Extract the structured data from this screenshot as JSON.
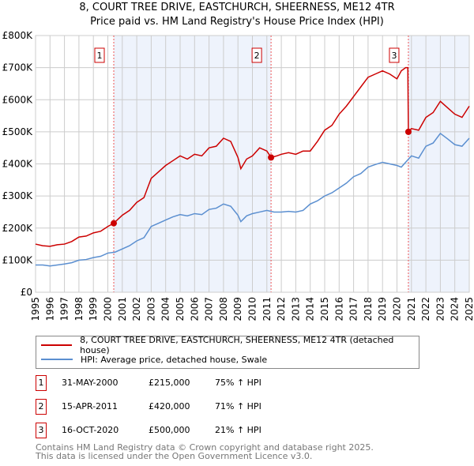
{
  "chart_data": {
    "type": "line",
    "title": "8, COURT TREE DRIVE, EASTCHURCH, SHEERNESS, ME12 4TR",
    "subtitle": "Price paid vs. HM Land Registry's House Price Index (HPI)",
    "xlim": [
      1995,
      2025
    ],
    "ylim": [
      0,
      800000
    ],
    "y_ticks": [
      0,
      100000,
      200000,
      300000,
      400000,
      500000,
      600000,
      700000,
      800000
    ],
    "y_tick_labels": [
      "£0",
      "£100K",
      "£200K",
      "£300K",
      "£400K",
      "£500K",
      "£600K",
      "£700K",
      "£800K"
    ],
    "x_ticks": [
      1995,
      1996,
      1997,
      1998,
      1999,
      2000,
      2001,
      2002,
      2003,
      2004,
      2005,
      2006,
      2007,
      2008,
      2009,
      2010,
      2011,
      2012,
      2013,
      2014,
      2015,
      2016,
      2017,
      2018,
      2019,
      2020,
      2021,
      2022,
      2023,
      2024,
      2025
    ],
    "grid": true,
    "shaded_ranges": [
      [
        2000.41,
        2011.29
      ],
      [
        2020.79,
        2025
      ]
    ],
    "series": [
      {
        "name": "8, COURT TREE DRIVE, EASTCHURCH, SHEERNESS, ME12 4TR (detached house)",
        "color": "#cc0000",
        "x": [
          1995,
          1995.5,
          1996,
          1996.5,
          1997,
          1997.5,
          1998,
          1998.5,
          1999,
          1999.5,
          2000,
          2000.41,
          2001,
          2001.5,
          2002,
          2002.5,
          2003,
          2003.5,
          2004,
          2004.5,
          2005,
          2005.5,
          2006,
          2006.5,
          2007,
          2007.5,
          2008,
          2008.5,
          2009,
          2009.2,
          2009.6,
          2010,
          2010.5,
          2011,
          2011.29,
          2011.7,
          2012,
          2012.5,
          2013,
          2013.5,
          2014,
          2014.5,
          2015,
          2015.5,
          2016,
          2016.5,
          2017,
          2017.5,
          2018,
          2018.5,
          2019,
          2019.5,
          2020,
          2020.3,
          2020.6,
          2020.75,
          2020.79,
          2021,
          2021.5,
          2022,
          2022.5,
          2023,
          2023.5,
          2024,
          2024.5,
          2025
        ],
        "y": [
          150000,
          145000,
          143000,
          148000,
          150000,
          158000,
          172000,
          175000,
          185000,
          190000,
          205000,
          215000,
          240000,
          255000,
          280000,
          295000,
          355000,
          375000,
          395000,
          410000,
          425000,
          415000,
          430000,
          425000,
          450000,
          455000,
          480000,
          470000,
          420000,
          385000,
          415000,
          425000,
          450000,
          440000,
          420000,
          425000,
          430000,
          435000,
          430000,
          440000,
          440000,
          470000,
          505000,
          520000,
          555000,
          580000,
          610000,
          640000,
          670000,
          680000,
          690000,
          680000,
          665000,
          690000,
          700000,
          700000,
          500000,
          510000,
          505000,
          545000,
          560000,
          595000,
          575000,
          555000,
          545000,
          580000
        ]
      },
      {
        "name": "HPI: Average price, detached house, Swale",
        "color": "#5b8fd0",
        "x": [
          1995,
          1995.5,
          1996,
          1996.5,
          1997,
          1997.5,
          1998,
          1998.5,
          1999,
          1999.5,
          2000,
          2000.5,
          2001,
          2001.5,
          2002,
          2002.5,
          2003,
          2003.5,
          2004,
          2004.5,
          2005,
          2005.5,
          2006,
          2006.5,
          2007,
          2007.5,
          2008,
          2008.5,
          2009,
          2009.2,
          2009.6,
          2010,
          2010.5,
          2011,
          2011.5,
          2012,
          2012.5,
          2013,
          2013.5,
          2014,
          2014.5,
          2015,
          2015.5,
          2016,
          2016.5,
          2017,
          2017.5,
          2018,
          2018.5,
          2019,
          2019.5,
          2020,
          2020.3,
          2020.8,
          2021,
          2021.5,
          2022,
          2022.5,
          2023,
          2023.5,
          2024,
          2024.5,
          2025
        ],
        "y": [
          85000,
          85000,
          82000,
          85000,
          88000,
          92000,
          100000,
          102000,
          108000,
          112000,
          122000,
          125000,
          135000,
          145000,
          160000,
          170000,
          205000,
          215000,
          225000,
          235000,
          242000,
          238000,
          245000,
          242000,
          258000,
          262000,
          275000,
          268000,
          240000,
          220000,
          238000,
          245000,
          250000,
          255000,
          250000,
          250000,
          252000,
          250000,
          255000,
          275000,
          285000,
          300000,
          310000,
          325000,
          340000,
          360000,
          370000,
          390000,
          398000,
          405000,
          400000,
          395000,
          390000,
          415000,
          425000,
          418000,
          455000,
          465000,
          495000,
          478000,
          460000,
          455000,
          480000
        ]
      }
    ],
    "markers": [
      {
        "label": "1",
        "x": 2000.41,
        "y": 215000
      },
      {
        "label": "2",
        "x": 2011.29,
        "y": 420000
      },
      {
        "label": "3",
        "x": 2020.79,
        "y": 500000
      }
    ]
  },
  "legend": {
    "items": [
      "8, COURT TREE DRIVE, EASTCHURCH, SHEERNESS, ME12 4TR (detached house)",
      "HPI: Average price, detached house, Swale"
    ]
  },
  "sales": [
    {
      "num": "1",
      "date": "31-MAY-2000",
      "price": "£215,000",
      "hpi": "75% ↑ HPI"
    },
    {
      "num": "2",
      "date": "15-APR-2011",
      "price": "£420,000",
      "hpi": "71% ↑ HPI"
    },
    {
      "num": "3",
      "date": "16-OCT-2020",
      "price": "£500,000",
      "hpi": "21% ↑ HPI"
    }
  ],
  "footer": [
    "Contains HM Land Registry data © Crown copyright and database right 2025.",
    "This data is licensed under the Open Government Licence v3.0."
  ]
}
